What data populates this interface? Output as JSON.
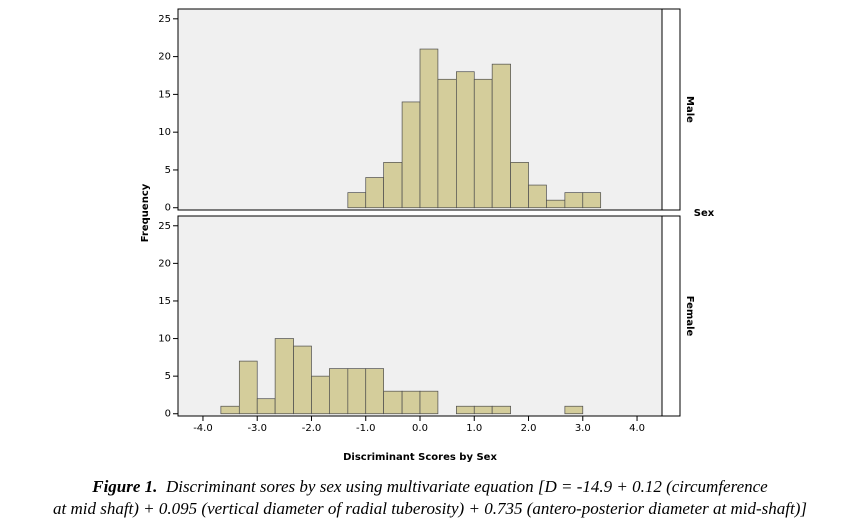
{
  "chart_data": [
    {
      "type": "histogram",
      "facet": "Male",
      "strip_title": "Sex",
      "y_label": "Frequency",
      "bins": [
        -3.67,
        -3.33,
        -3,
        -2.67,
        -2.33,
        -2,
        -1.67,
        -1.33,
        -1,
        -0.67,
        -0.33,
        0,
        0.33,
        0.67,
        1,
        1.33,
        1.67,
        2,
        2.33,
        2.67,
        3,
        3.33
      ],
      "counts": [
        0,
        0,
        0,
        0,
        0,
        0,
        0,
        2,
        4,
        6,
        14,
        21,
        17,
        18,
        17,
        19,
        6,
        3,
        1,
        2,
        2
      ],
      "color": "#d4cd9b",
      "xlim": [
        -4.46,
        4.46
      ],
      "ylim": [
        -0.3,
        26.3
      ],
      "yticks": [
        0,
        5,
        10,
        15,
        20,
        25
      ]
    },
    {
      "type": "histogram",
      "facet": "Female",
      "x_label": "Discriminant Scores by Sex",
      "bins": [
        -3.67,
        -3.33,
        -3,
        -2.67,
        -2.33,
        -2,
        -1.67,
        -1.33,
        -1,
        -0.67,
        -0.33,
        0,
        0.33,
        0.67,
        1,
        1.33,
        1.67,
        2,
        2.33,
        2.67,
        3,
        3.33
      ],
      "counts": [
        1,
        7,
        2,
        10,
        9,
        5,
        6,
        6,
        6,
        3,
        3,
        3,
        0,
        1,
        1,
        1,
        0,
        0,
        0,
        1,
        0
      ],
      "color": "#d4cd9b",
      "xlim": [
        -4.46,
        4.46
      ],
      "ylim": [
        -0.3,
        26.3
      ],
      "yticks": [
        0,
        5,
        10,
        15,
        20,
        25
      ],
      "xticks": [
        {
          "value": -4,
          "label": "-4.0"
        },
        {
          "value": -3,
          "label": "-3.0"
        },
        {
          "value": -2,
          "label": "-2.0"
        },
        {
          "value": -1,
          "label": "-1.0"
        },
        {
          "value": 0,
          "label": "0.0"
        },
        {
          "value": 1,
          "label": "1.0"
        },
        {
          "value": 2,
          "label": "2.0"
        },
        {
          "value": 3,
          "label": "3.0"
        },
        {
          "value": 4,
          "label": "4.0"
        }
      ]
    }
  ],
  "caption": {
    "label": "Figure 1.",
    "lines": [
      "Discriminant sores by sex using multivariate equation [D = -14.9 + 0.12 (circumference",
      "at mid shaft) + 0.095 (vertical diameter of radial tuberosity) + 0.735 (antero-posterior diameter at mid-shaft)]"
    ]
  }
}
